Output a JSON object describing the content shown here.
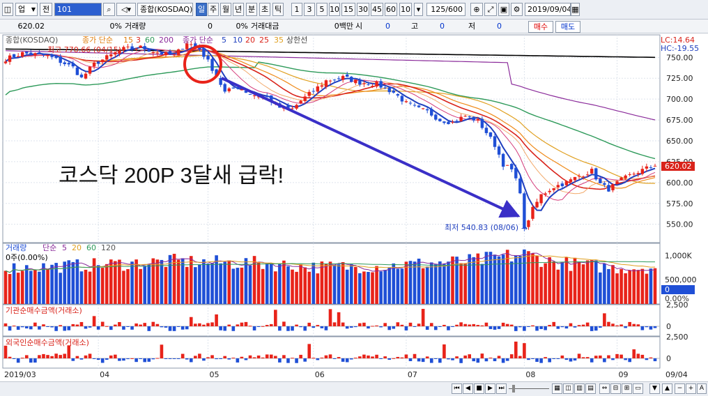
{
  "toolbar": {
    "market": "업",
    "prev": "전",
    "code": "101",
    "name": "종합(KOSDAQ)",
    "periods": [
      "일",
      "주",
      "월",
      "년",
      "분",
      "초",
      "틱"
    ],
    "selected_period": "일",
    "intervals": [
      "1",
      "3",
      "5",
      "10",
      "15",
      "30",
      "45",
      "60",
      "10"
    ],
    "count": "125/600",
    "date": "2019/09/04"
  },
  "infobar": {
    "price": "620.02",
    "pct1": "0%",
    "volume_label": "거래량",
    "volume_value": "0",
    "pct2": "0%",
    "amount_label": "거래대금",
    "amount_value": "0백만",
    "open_label": "시",
    "open_value": "0",
    "high_label": "고",
    "high_value": "0",
    "low_label": "저",
    "low_value": "0",
    "buy_label": "매수",
    "sell_label": "매도"
  },
  "colors": {
    "up": "#e8231a",
    "down": "#1f4fd6",
    "ma5": "#1f3fbf",
    "ma10": "#d9231a",
    "ma20": "#ef8a19",
    "ma60": "#2e9a5a",
    "ma120": "#8a2a9a",
    "ma200": "#000000",
    "arrow": "#3a2fc7",
    "circle": "#e8231a"
  },
  "chart_data": [
    {
      "type": "candlestick",
      "title": "종합(KOSDAQ)",
      "legend": [
        {
          "label": "종합(KOSDAQ)"
        },
        {
          "label": "종가 단순",
          "periods": [
            "15",
            "3",
            "60",
            "200"
          ]
        },
        {
          "label": "종가 단순",
          "periods": [
            "5",
            "10",
            "20",
            "25",
            "35"
          ]
        },
        {
          "label": "상한선"
        }
      ],
      "annotations": {
        "high": "최고 770.66 (04/15)",
        "low": "최저 540.83 (08/06)",
        "headline": "코스닥 200P 3달새 급락!",
        "lc": "LC:14.64",
        "hc": "HC:-19.55",
        "last_price_tag": "620.02"
      },
      "y_ticks": [
        "750.00",
        "725.00",
        "700.00",
        "675.00",
        "650.00",
        "625.00",
        "600.00",
        "575.00",
        "550.00"
      ],
      "y_tick_values": [
        750,
        725,
        700,
        675,
        650,
        625,
        600,
        575,
        550
      ],
      "ylim": [
        528,
        777
      ],
      "x_tick_labels": [
        "2019/03",
        "04",
        "05",
        "06",
        "07",
        "08",
        "09",
        "09/04"
      ],
      "x_tick_index": [
        0,
        22,
        48,
        73,
        95,
        123,
        145,
        154
      ],
      "high_point": {
        "index": 43,
        "value": 770.66
      },
      "low_point": {
        "index": 123,
        "value": 540.83
      },
      "close_anchors": [
        [
          0,
          748
        ],
        [
          4,
          755
        ],
        [
          10,
          752
        ],
        [
          16,
          738
        ],
        [
          18,
          725
        ],
        [
          21,
          742
        ],
        [
          24,
          750
        ],
        [
          28,
          760
        ],
        [
          32,
          762
        ],
        [
          36,
          756
        ],
        [
          40,
          752
        ],
        [
          43,
          768
        ],
        [
          46,
          760
        ],
        [
          48,
          745
        ],
        [
          50,
          728
        ],
        [
          52,
          708
        ],
        [
          55,
          715
        ],
        [
          58,
          706
        ],
        [
          62,
          702
        ],
        [
          65,
          690
        ],
        [
          68,
          688
        ],
        [
          70,
          698
        ],
        [
          73,
          710
        ],
        [
          76,
          722
        ],
        [
          80,
          726
        ],
        [
          84,
          720
        ],
        [
          88,
          718
        ],
        [
          92,
          708
        ],
        [
          95,
          695
        ],
        [
          98,
          688
        ],
        [
          100,
          685
        ],
        [
          103,
          675
        ],
        [
          106,
          672
        ],
        [
          109,
          680
        ],
        [
          112,
          674
        ],
        [
          114,
          660
        ],
        [
          116,
          645
        ],
        [
          118,
          622
        ],
        [
          120,
          615
        ],
        [
          122,
          590
        ],
        [
          123,
          545
        ],
        [
          125,
          568
        ],
        [
          127,
          585
        ],
        [
          130,
          595
        ],
        [
          133,
          600
        ],
        [
          136,
          608
        ],
        [
          139,
          614
        ],
        [
          141,
          598
        ],
        [
          143,
          592
        ],
        [
          146,
          603
        ],
        [
          149,
          611
        ],
        [
          152,
          617
        ],
        [
          154,
          620
        ]
      ]
    },
    {
      "type": "bar",
      "title": "거래량",
      "legend": [
        {
          "label": "거래량"
        },
        {
          "label": "단순",
          "periods": [
            "5",
            "20",
            "60",
            "120"
          ]
        }
      ],
      "annotations": {
        "left_label": "0주(0.00%)",
        "right_value": "0",
        "right_pct": "0.00%"
      },
      "y_ticks": [
        "1,000K",
        "500,000"
      ],
      "y_tick_values": [
        1000,
        500
      ],
      "ylim": [
        0,
        1150
      ],
      "volume_anchors": [
        [
          0,
          760
        ],
        [
          20,
          820
        ],
        [
          40,
          900
        ],
        [
          48,
          880
        ],
        [
          60,
          860
        ],
        [
          73,
          780
        ],
        [
          90,
          800
        ],
        [
          100,
          860
        ],
        [
          110,
          900
        ],
        [
          123,
          1050
        ],
        [
          130,
          880
        ],
        [
          145,
          760
        ],
        [
          154,
          780
        ]
      ]
    },
    {
      "type": "bar",
      "title": "기관순매수금액(거래소)",
      "y_ticks": [
        "2,500",
        "0"
      ],
      "y_tick_values": [
        2500,
        0
      ],
      "ylim": [
        -1800,
        3200
      ]
    },
    {
      "type": "bar",
      "title": "외국인순매수금액(거래소)",
      "y_ticks": [
        "2,500",
        "0"
      ],
      "y_tick_values": [
        2500,
        0
      ],
      "ylim": [
        -1800,
        3200
      ]
    }
  ]
}
